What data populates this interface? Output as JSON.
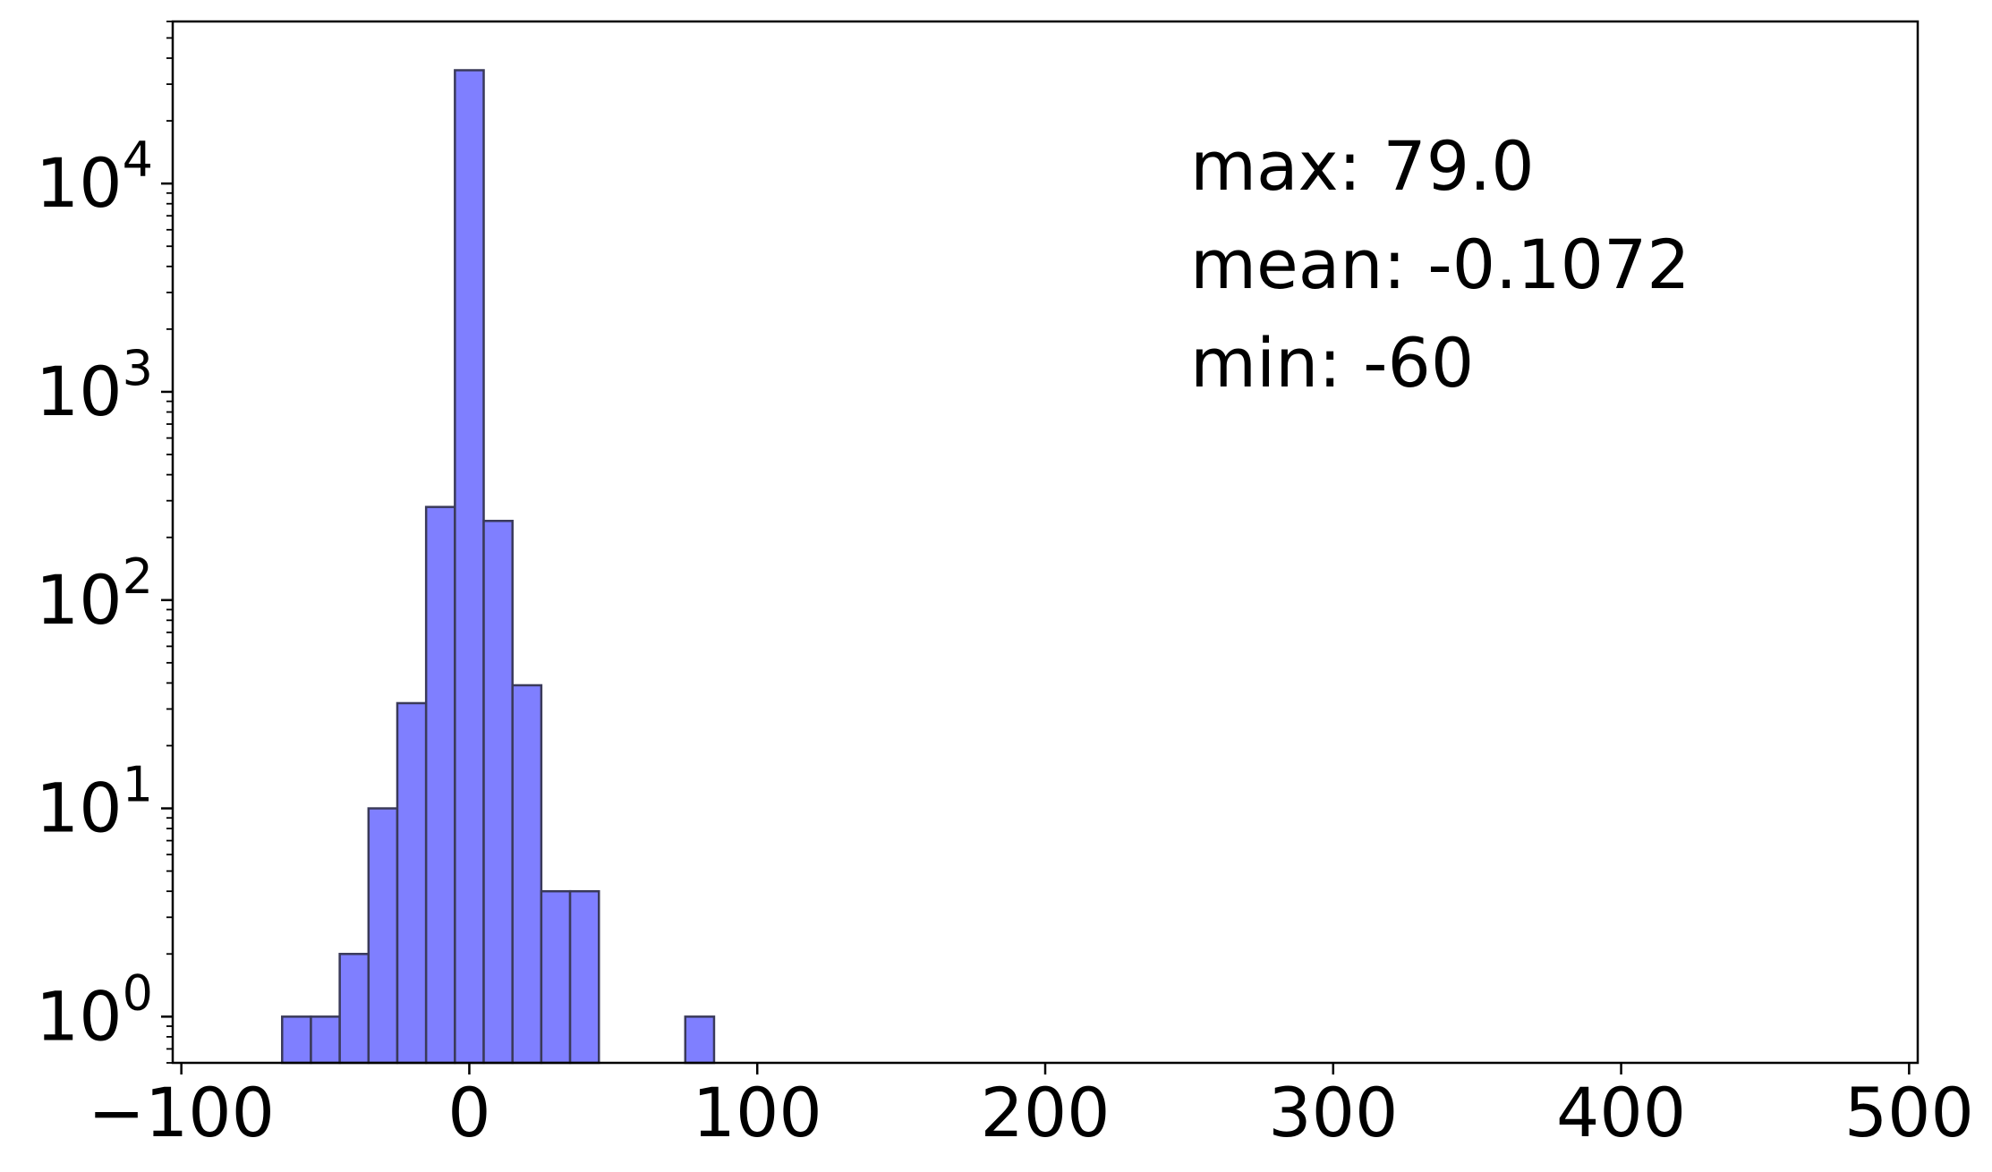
{
  "chart_data": {
    "type": "bar",
    "subtype": "histogram",
    "y_scale": "log",
    "bar_color": "#7f7fff",
    "edge_color": "#3a3a5a",
    "xlim": [
      -103,
      503
    ],
    "ylim": [
      0.6,
      60000
    ],
    "x_ticks": [
      -100,
      0,
      100,
      200,
      300,
      400,
      500
    ],
    "x_tick_labels": [
      "−100",
      "0",
      "100",
      "200",
      "300",
      "400",
      "500"
    ],
    "y_ticks": [
      {
        "value": 1,
        "base": "10",
        "exp": "0"
      },
      {
        "value": 10,
        "base": "10",
        "exp": "1"
      },
      {
        "value": 100,
        "base": "10",
        "exp": "2"
      },
      {
        "value": 1000,
        "base": "10",
        "exp": "3"
      },
      {
        "value": 10000,
        "base": "10",
        "exp": "4"
      }
    ],
    "bins": [
      {
        "x0": -65,
        "x1": -55,
        "count": 1
      },
      {
        "x0": -55,
        "x1": -45,
        "count": 1
      },
      {
        "x0": -45,
        "x1": -35,
        "count": 2
      },
      {
        "x0": -35,
        "x1": -25,
        "count": 10
      },
      {
        "x0": -25,
        "x1": -15,
        "count": 32
      },
      {
        "x0": -15,
        "x1": -5,
        "count": 280
      },
      {
        "x0": -5,
        "x1": 5,
        "count": 35000
      },
      {
        "x0": 5,
        "x1": 15,
        "count": 240
      },
      {
        "x0": 15,
        "x1": 25,
        "count": 39
      },
      {
        "x0": 25,
        "x1": 35,
        "count": 4
      },
      {
        "x0": 35,
        "x1": 45,
        "count": 4
      },
      {
        "x0": 75,
        "x1": 85,
        "count": 1
      }
    ],
    "stats": {
      "max": "max: 79.0",
      "mean": "mean: -0.1072",
      "min": "min: -60"
    },
    "title": "",
    "xlabel": "",
    "ylabel": "",
    "grid": false
  }
}
